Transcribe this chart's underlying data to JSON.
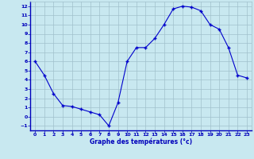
{
  "x": [
    0,
    1,
    2,
    3,
    4,
    5,
    6,
    7,
    8,
    9,
    10,
    11,
    12,
    13,
    14,
    15,
    16,
    17,
    18,
    19,
    20,
    21,
    22,
    23
  ],
  "y": [
    6,
    4.5,
    2.5,
    1.2,
    1.1,
    0.8,
    0.5,
    0.2,
    -1,
    1.5,
    6,
    7.5,
    7.5,
    8.5,
    10,
    11.7,
    12,
    11.9,
    11.5,
    10,
    9.5,
    7.5,
    4.5,
    4.2
  ],
  "line_color": "#0000cc",
  "marker": "+",
  "bg_color": "#c8e8f0",
  "grid_color": "#a0c0cc",
  "xlabel": "Graphe des températures (°c)",
  "xlabel_color": "#0000bb",
  "axis_label_color": "#0000bb",
  "xlim": [
    -0.5,
    23.5
  ],
  "ylim": [
    -1.5,
    12.5
  ],
  "yticks": [
    -1,
    0,
    1,
    2,
    3,
    4,
    5,
    6,
    7,
    8,
    9,
    10,
    11,
    12
  ],
  "xticks": [
    0,
    1,
    2,
    3,
    4,
    5,
    6,
    7,
    8,
    9,
    10,
    11,
    12,
    13,
    14,
    15,
    16,
    17,
    18,
    19,
    20,
    21,
    22,
    23
  ]
}
